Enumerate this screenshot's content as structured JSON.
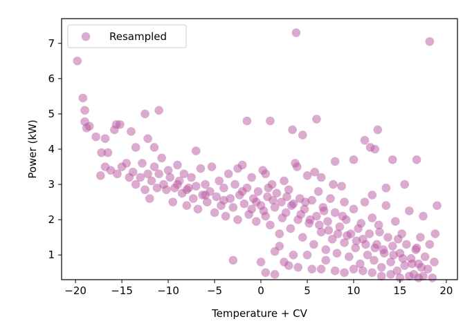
{
  "chart_data": {
    "type": "scatter",
    "title": "",
    "xlabel": "Temperature + CV",
    "ylabel": "Power (kW)",
    "xlim": [
      -21.5,
      21.2
    ],
    "ylim": [
      0.3,
      7.7
    ],
    "xticks": [
      -20,
      -15,
      -10,
      -5,
      0,
      5,
      10,
      15,
      20
    ],
    "xtick_labels": [
      "−20",
      "−15",
      "−10",
      "−5",
      "0",
      "5",
      "10",
      "15",
      "20"
    ],
    "yticks": [
      1,
      2,
      3,
      4,
      5,
      6,
      7
    ],
    "ytick_labels": [
      "1",
      "2",
      "3",
      "4",
      "5",
      "6",
      "7"
    ],
    "grid": false,
    "legend": {
      "position": "top-left",
      "entries": [
        "Resampled"
      ]
    },
    "series": [
      {
        "name": "Resampled",
        "color": "#b7559f",
        "alpha": 0.5,
        "points": [
          [
            -19.8,
            6.5
          ],
          [
            -19.2,
            5.45
          ],
          [
            -19,
            5.1
          ],
          [
            -19,
            4.78
          ],
          [
            -18.8,
            4.6
          ],
          [
            -18.5,
            4.65
          ],
          [
            -17.8,
            4.35
          ],
          [
            -16.8,
            4.3
          ],
          [
            -15.6,
            4.7
          ],
          [
            -15.8,
            4.55
          ],
          [
            -15.2,
            4.7
          ],
          [
            -14,
            4.5
          ],
          [
            -12.5,
            5.0
          ],
          [
            -11,
            5.1
          ],
          [
            -12.2,
            4.3
          ],
          [
            -1.5,
            4.8
          ],
          [
            1,
            4.8
          ],
          [
            3.8,
            7.3
          ],
          [
            18.2,
            7.05
          ],
          [
            3.4,
            4.55
          ],
          [
            4.5,
            4.4
          ],
          [
            6,
            4.85
          ],
          [
            12.6,
            4.55
          ],
          [
            11.2,
            4.25
          ],
          [
            11.8,
            4.05
          ],
          [
            12.3,
            4.0
          ],
          [
            -7,
            3.95
          ],
          [
            -13.5,
            4.05
          ],
          [
            -11.5,
            4.05
          ],
          [
            -17.2,
            3.9
          ],
          [
            -16.5,
            3.9
          ],
          [
            -16.8,
            3.5
          ],
          [
            -17.3,
            3.25
          ],
          [
            -16.2,
            3.4
          ],
          [
            -15.5,
            3.3
          ],
          [
            -15,
            3.5
          ],
          [
            -14.5,
            3.6
          ],
          [
            -14.2,
            3.2
          ],
          [
            -13.8,
            3.35
          ],
          [
            -13.5,
            3.0
          ],
          [
            -13,
            3.2
          ],
          [
            -12.8,
            3.6
          ],
          [
            -12.5,
            2.85
          ],
          [
            -12.2,
            3.3
          ],
          [
            -12,
            2.6
          ],
          [
            -11.8,
            3.1
          ],
          [
            -11.5,
            3.5
          ],
          [
            -11.2,
            2.9
          ],
          [
            -11,
            3.3
          ],
          [
            -10.7,
            3.75
          ],
          [
            -10.5,
            3.0
          ],
          [
            -10.2,
            2.85
          ],
          [
            -10,
            3.4
          ],
          [
            -9.8,
            3.2
          ],
          [
            -9.5,
            2.5
          ],
          [
            -9.3,
            2.9
          ],
          [
            -9,
            3.55
          ],
          [
            -8.8,
            3.1
          ],
          [
            -8.5,
            2.75
          ],
          [
            -8.3,
            3.3
          ],
          [
            -8,
            2.4
          ],
          [
            -7.8,
            2.9
          ],
          [
            -7.5,
            3.2
          ],
          [
            -7.3,
            2.6
          ],
          [
            -7,
            2.95
          ],
          [
            -6.8,
            2.3
          ],
          [
            -6.5,
            3.45
          ],
          [
            -6.3,
            2.7
          ],
          [
            -6,
            3.0
          ],
          [
            -5.8,
            2.5
          ],
          [
            -5.5,
            2.8
          ],
          [
            -5.3,
            3.5
          ],
          [
            -5,
            2.2
          ],
          [
            -4.8,
            2.65
          ],
          [
            -4.5,
            3.1
          ],
          [
            -4.3,
            2.4
          ],
          [
            -4,
            2.9
          ],
          [
            -3.8,
            2.1
          ],
          [
            -3.5,
            3.3
          ],
          [
            -3.3,
            2.6
          ],
          [
            -3,
            2.35
          ],
          [
            -2.8,
            3.0
          ],
          [
            -2.5,
            2.0
          ],
          [
            -2.3,
            2.7
          ],
          [
            -2,
            3.55
          ],
          [
            -1.8,
            2.45
          ],
          [
            -1.5,
            2.9
          ],
          [
            -1.3,
            2.15
          ],
          [
            -1,
            3.2
          ],
          [
            -0.8,
            2.6
          ],
          [
            -0.5,
            1.95
          ],
          [
            -0.3,
            2.8
          ],
          [
            0,
            2.4
          ],
          [
            0.2,
            3.4
          ],
          [
            0.5,
            2.1
          ],
          [
            0.7,
            2.65
          ],
          [
            1,
            1.85
          ],
          [
            1.2,
            3.0
          ],
          [
            1.5,
            2.35
          ],
          [
            1.7,
            2.75
          ],
          [
            2,
            1.6
          ],
          [
            2.2,
            2.5
          ],
          [
            2.5,
            3.1
          ],
          [
            2.7,
            2.2
          ],
          [
            3,
            2.85
          ],
          [
            3.2,
            1.75
          ],
          [
            3.5,
            2.45
          ],
          [
            3.7,
            3.6
          ],
          [
            4,
            2.0
          ],
          [
            4.2,
            2.6
          ],
          [
            4.5,
            1.5
          ],
          [
            4.7,
            2.3
          ],
          [
            5,
            3.25
          ],
          [
            5.2,
            1.9
          ],
          [
            5.5,
            2.55
          ],
          [
            5.7,
            1.3
          ],
          [
            6,
            2.1
          ],
          [
            6.2,
            2.8
          ],
          [
            6.5,
            1.65
          ],
          [
            6.7,
            2.35
          ],
          [
            7,
            1.15
          ],
          [
            7.2,
            1.95
          ],
          [
            7.5,
            2.6
          ],
          [
            7.7,
            1.45
          ],
          [
            8,
            2.2
          ],
          [
            8.2,
            1.05
          ],
          [
            8.5,
            1.8
          ],
          [
            8.7,
            2.95
          ],
          [
            9,
            1.35
          ],
          [
            9.2,
            2.0
          ],
          [
            9.5,
            0.95
          ],
          [
            9.7,
            1.6
          ],
          [
            10,
            2.3
          ],
          [
            10.2,
            1.2
          ],
          [
            10.5,
            1.75
          ],
          [
            10.7,
            0.75
          ],
          [
            11,
            1.45
          ],
          [
            11.2,
            2.5
          ],
          [
            11.5,
            1.0
          ],
          [
            11.7,
            1.6
          ],
          [
            12,
            2.05
          ],
          [
            12.2,
            0.85
          ],
          [
            12.5,
            1.3
          ],
          [
            12.7,
            1.85
          ],
          [
            13,
            0.65
          ],
          [
            13.2,
            1.15
          ],
          [
            13.5,
            2.4
          ],
          [
            13.7,
            1.5
          ],
          [
            14,
            0.8
          ],
          [
            14.2,
            1.25
          ],
          [
            14.5,
            1.95
          ],
          [
            14.7,
            0.55
          ],
          [
            15,
            1.05
          ],
          [
            15.2,
            1.6
          ],
          [
            15.5,
            0.7
          ],
          [
            15.7,
            1.3
          ],
          [
            16,
            2.25
          ],
          [
            16.2,
            0.9
          ],
          [
            16.5,
            0.45
          ],
          [
            16.7,
            1.15
          ],
          [
            17,
            0.75
          ],
          [
            17.2,
            1.5
          ],
          [
            17.5,
            0.4
          ],
          [
            17.7,
            0.95
          ],
          [
            18,
            0.6
          ],
          [
            18.2,
            1.3
          ],
          [
            18.5,
            0.35
          ],
          [
            18.7,
            0.8
          ],
          [
            19,
            2.4
          ],
          [
            18.8,
            1.6
          ],
          [
            -3,
            0.85
          ],
          [
            0,
            0.8
          ],
          [
            0.5,
            0.5
          ],
          [
            1.5,
            0.45
          ],
          [
            2.5,
            0.8
          ],
          [
            3,
            0.7
          ],
          [
            4,
            0.65
          ],
          [
            5,
            1.0
          ],
          [
            5.5,
            0.6
          ],
          [
            6.5,
            0.6
          ],
          [
            7,
            0.85
          ],
          [
            8,
            0.55
          ],
          [
            9,
            0.5
          ],
          [
            10,
            0.6
          ],
          [
            11,
            0.55
          ],
          [
            12,
            0.5
          ],
          [
            13,
            0.4
          ],
          [
            14,
            0.45
          ],
          [
            15,
            0.35
          ],
          [
            16,
            0.4
          ],
          [
            17,
            0.35
          ],
          [
            2,
            1.25
          ],
          [
            1.5,
            1.1
          ],
          [
            3.5,
            1.0
          ],
          [
            -1,
            2.3
          ],
          [
            -0.5,
            2.5
          ],
          [
            0.3,
            2.25
          ],
          [
            1.3,
            2.55
          ],
          [
            2.3,
            2.05
          ],
          [
            3.3,
            2.4
          ],
          [
            4.3,
            2.15
          ],
          [
            5.3,
            2.0
          ],
          [
            6.3,
            1.85
          ],
          [
            7.3,
            1.7
          ],
          [
            8.3,
            1.6
          ],
          [
            9.3,
            1.55
          ],
          [
            10.3,
            1.4
          ],
          [
            11.3,
            1.3
          ],
          [
            12.3,
            1.2
          ],
          [
            13.3,
            1.05
          ],
          [
            14.3,
            1.0
          ],
          [
            15.3,
            0.9
          ],
          [
            16.3,
            0.75
          ],
          [
            17.3,
            0.65
          ],
          [
            0.8,
            2.9
          ],
          [
            2.8,
            2.65
          ],
          [
            4.8,
            2.5
          ],
          [
            6.8,
            2.25
          ],
          [
            8.8,
            2.1
          ],
          [
            10.8,
            1.9
          ],
          [
            12.8,
            1.65
          ],
          [
            14.8,
            1.45
          ],
          [
            16.8,
            1.2
          ],
          [
            -2,
            2.8
          ],
          [
            -4,
            2.55
          ],
          [
            -6,
            2.7
          ],
          [
            -8,
            2.85
          ],
          [
            -9,
            3.0
          ],
          [
            3.9,
            3.5
          ],
          [
            6.5,
            3.2
          ],
          [
            8,
            3.65
          ],
          [
            10,
            3.7
          ],
          [
            14.2,
            3.7
          ],
          [
            16.8,
            3.7
          ],
          [
            15.5,
            3.0
          ],
          [
            13.5,
            2.9
          ],
          [
            17.5,
            2.1
          ],
          [
            12,
            2.7
          ],
          [
            9,
            2.5
          ],
          [
            7.8,
            3.0
          ],
          [
            5.8,
            3.35
          ],
          [
            -2.5,
            3.45
          ],
          [
            0.5,
            3.3
          ]
        ]
      }
    ]
  }
}
